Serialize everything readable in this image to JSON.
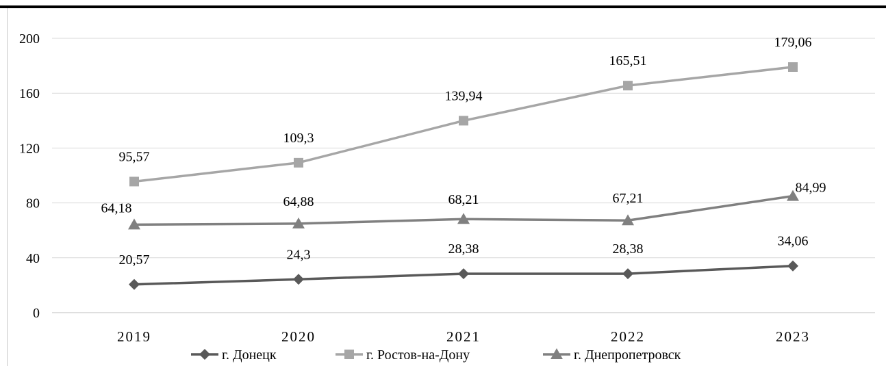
{
  "chart_data": {
    "type": "line",
    "categories": [
      "2019",
      "2020",
      "2021",
      "2022",
      "2023"
    ],
    "ylim": [
      0,
      200
    ],
    "yticks": [
      "0",
      "40",
      "80",
      "120",
      "160",
      "200"
    ],
    "grid": true,
    "legend_position": "bottom",
    "series": [
      {
        "name": "г. Донецк",
        "marker": "diamond",
        "color": "#595959",
        "values": [
          20.57,
          24.3,
          28.38,
          28.38,
          34.06
        ],
        "labels": [
          "20,57",
          "24,3",
          "28,38",
          "28,38",
          "34,06"
        ]
      },
      {
        "name": "г. Ростов-на-Дону",
        "marker": "square",
        "color": "#a6a6a6",
        "values": [
          95.57,
          109.3,
          139.94,
          165.51,
          179.06
        ],
        "labels": [
          "95,57",
          "109,3",
          "139,94",
          "165,51",
          "179,06"
        ]
      },
      {
        "name": "г. Днепропетровск",
        "marker": "triangle",
        "color": "#808080",
        "values": [
          64.18,
          64.88,
          68.21,
          67.21,
          84.99
        ],
        "labels": [
          "64,18",
          "64,88",
          "68,21",
          "67,21",
          "84,99"
        ]
      }
    ]
  }
}
